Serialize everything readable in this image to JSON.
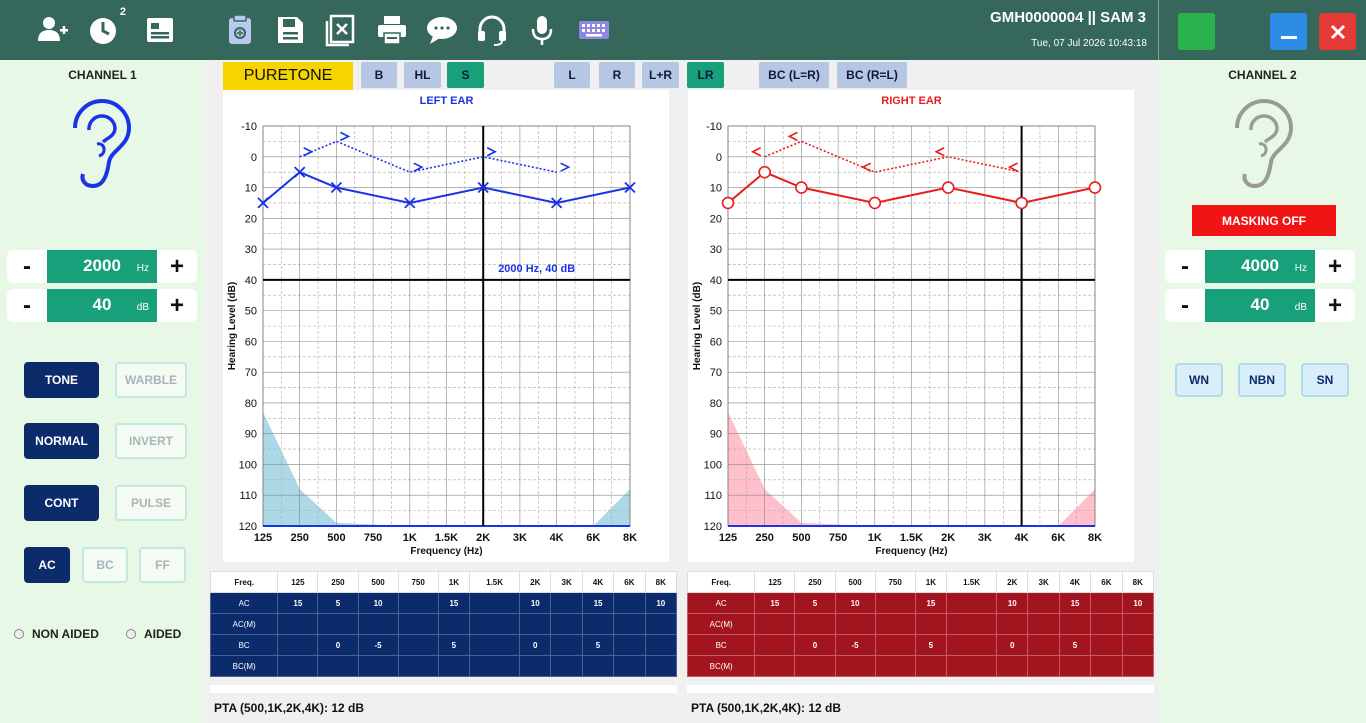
{
  "header": {
    "patient": "GMH0000004  || SAM 3",
    "datetime": "Tue, 07 Jul 2026 10:43:18",
    "history_badge": "2",
    "icons": [
      "add-user-icon",
      "history-icon",
      "id-card-icon",
      "clipboard-icon",
      "save-icon",
      "clear-icon",
      "print-icon",
      "chat-icon",
      "headset-icon",
      "microphone-icon",
      "keyboard-icon"
    ]
  },
  "left_panel": {
    "title": "CHANNEL 1",
    "freq": {
      "minus": "-",
      "value": "2000",
      "unit": "Hz",
      "plus": "+"
    },
    "level": {
      "minus": "-",
      "value": "40",
      "unit": "dB",
      "plus": "+"
    },
    "buttons": {
      "tone": "TONE",
      "warble": "WARBLE",
      "normal": "NORMAL",
      "invert": "INVERT",
      "cont": "CONT",
      "pulse": "PULSE",
      "ac": "AC",
      "bc": "BC",
      "ff": "FF"
    },
    "radio": {
      "non_aided": "NON AIDED",
      "aided": "AIDED"
    }
  },
  "right_panel": {
    "title": "CHANNEL 2",
    "masking": "MASKING OFF",
    "freq": {
      "minus": "-",
      "value": "4000",
      "unit": "Hz",
      "plus": "+"
    },
    "level": {
      "minus": "-",
      "value": "40",
      "unit": "dB",
      "plus": "+"
    },
    "buttons": {
      "wn": "WN",
      "nbn": "NBN",
      "sn": "SN"
    }
  },
  "toolbar": {
    "puretone": "PURETONE",
    "b": "B",
    "hl": "HL",
    "s": "S",
    "l": "L",
    "r": "R",
    "lr_plus": "L+R",
    "lr": "LR",
    "bc_lr": "BC (L=R)",
    "bc_rl": "BC (R=L)"
  },
  "colors": {
    "left": "#1a33e6",
    "right": "#e81e1e",
    "accent": "#17a07a",
    "header": "#35685b",
    "panel": "#e7f8e6"
  },
  "chart_data": [
    {
      "type": "line",
      "title": "LEFT EAR",
      "xlabel": "Frequency (Hz)",
      "ylabel": "Hearing Level  (dB)",
      "x_ticks": [
        "125",
        "250",
        "500",
        "750",
        "1K",
        "1.5K",
        "2K",
        "3K",
        "4K",
        "6K",
        "8K"
      ],
      "y_ticks": [
        "-10",
        "0",
        "10",
        "20",
        "30",
        "40",
        "50",
        "60",
        "70",
        "80",
        "90",
        "100",
        "110",
        "120"
      ],
      "ylim": [
        -10,
        120
      ],
      "y_inverted": true,
      "grid": true,
      "cursor_label": "2000 Hz, 40 dB",
      "cursor": {
        "x": "2K",
        "y": 40
      },
      "series": [
        {
          "name": "AC",
          "marker": "x",
          "style": "solid",
          "x": [
            "125",
            "250",
            "500",
            "1K",
            "2K",
            "4K",
            "8K"
          ],
          "y": [
            15,
            5,
            10,
            15,
            10,
            15,
            10
          ]
        },
        {
          "name": "BC",
          "marker": ">",
          "style": "dotted",
          "x": [
            "250",
            "500",
            "1K",
            "2K",
            "4K"
          ],
          "y": [
            0,
            -5,
            5,
            0,
            5
          ]
        }
      ],
      "shaded_region": {
        "x": [
          "125",
          "250",
          "500",
          "1K",
          "2K",
          "4K",
          "6K",
          "8K"
        ],
        "y": [
          83,
          108,
          119,
          120,
          120,
          120,
          120,
          108
        ]
      }
    },
    {
      "type": "line",
      "title": "RIGHT EAR",
      "xlabel": "Frequency (Hz)",
      "ylabel": "Hearing Level  (dB)",
      "x_ticks": [
        "125",
        "250",
        "500",
        "750",
        "1K",
        "1.5K",
        "2K",
        "3K",
        "4K",
        "6K",
        "8K"
      ],
      "y_ticks": [
        "-10",
        "0",
        "10",
        "20",
        "30",
        "40",
        "50",
        "60",
        "70",
        "80",
        "90",
        "100",
        "110",
        "120"
      ],
      "ylim": [
        -10,
        120
      ],
      "y_inverted": true,
      "grid": true,
      "cursor": {
        "x": "4K",
        "y": 40
      },
      "series": [
        {
          "name": "AC",
          "marker": "o",
          "style": "solid",
          "x": [
            "125",
            "250",
            "500",
            "1K",
            "2K",
            "4K",
            "8K"
          ],
          "y": [
            15,
            5,
            10,
            15,
            10,
            15,
            10
          ]
        },
        {
          "name": "BC",
          "marker": "<",
          "style": "dotted",
          "x": [
            "250",
            "500",
            "1K",
            "2K",
            "4K"
          ],
          "y": [
            0,
            -5,
            5,
            0,
            5
          ]
        }
      ],
      "shaded_region": {
        "x": [
          "125",
          "250",
          "500",
          "1K",
          "2K",
          "4K",
          "6K",
          "8K"
        ],
        "y": [
          83,
          108,
          119,
          120,
          120,
          120,
          120,
          108
        ]
      }
    }
  ],
  "tables": {
    "columns": [
      "Freq.",
      "125",
      "250",
      "500",
      "750",
      "1K",
      "1.5K",
      "2K",
      "3K",
      "4K",
      "6K",
      "8K"
    ],
    "left": [
      [
        "AC",
        "15",
        "5",
        "10",
        "",
        "15",
        "",
        "10",
        "",
        "15",
        "",
        "10"
      ],
      [
        "AC(M)",
        "",
        "",
        "",
        "",
        "",
        "",
        "",
        "",
        "",
        "",
        ""
      ],
      [
        "BC",
        "",
        "0",
        "-5",
        "",
        "5",
        "",
        "0",
        "",
        "5",
        "",
        ""
      ],
      [
        "BC(M)",
        "",
        "",
        "",
        "",
        "",
        "",
        "",
        "",
        "",
        "",
        ""
      ]
    ],
    "right": [
      [
        "AC",
        "15",
        "5",
        "10",
        "",
        "15",
        "",
        "10",
        "",
        "15",
        "",
        "10"
      ],
      [
        "AC(M)",
        "",
        "",
        "",
        "",
        "",
        "",
        "",
        "",
        "",
        "",
        ""
      ],
      [
        "BC",
        "",
        "0",
        "-5",
        "",
        "5",
        "",
        "0",
        "",
        "5",
        "",
        ""
      ],
      [
        "BC(M)",
        "",
        "",
        "",
        "",
        "",
        "",
        "",
        "",
        "",
        "",
        ""
      ]
    ]
  },
  "pta": {
    "left": "PTA (500,1K,2K,4K): 12 dB",
    "right": "PTA (500,1K,2K,4K): 12 dB"
  }
}
